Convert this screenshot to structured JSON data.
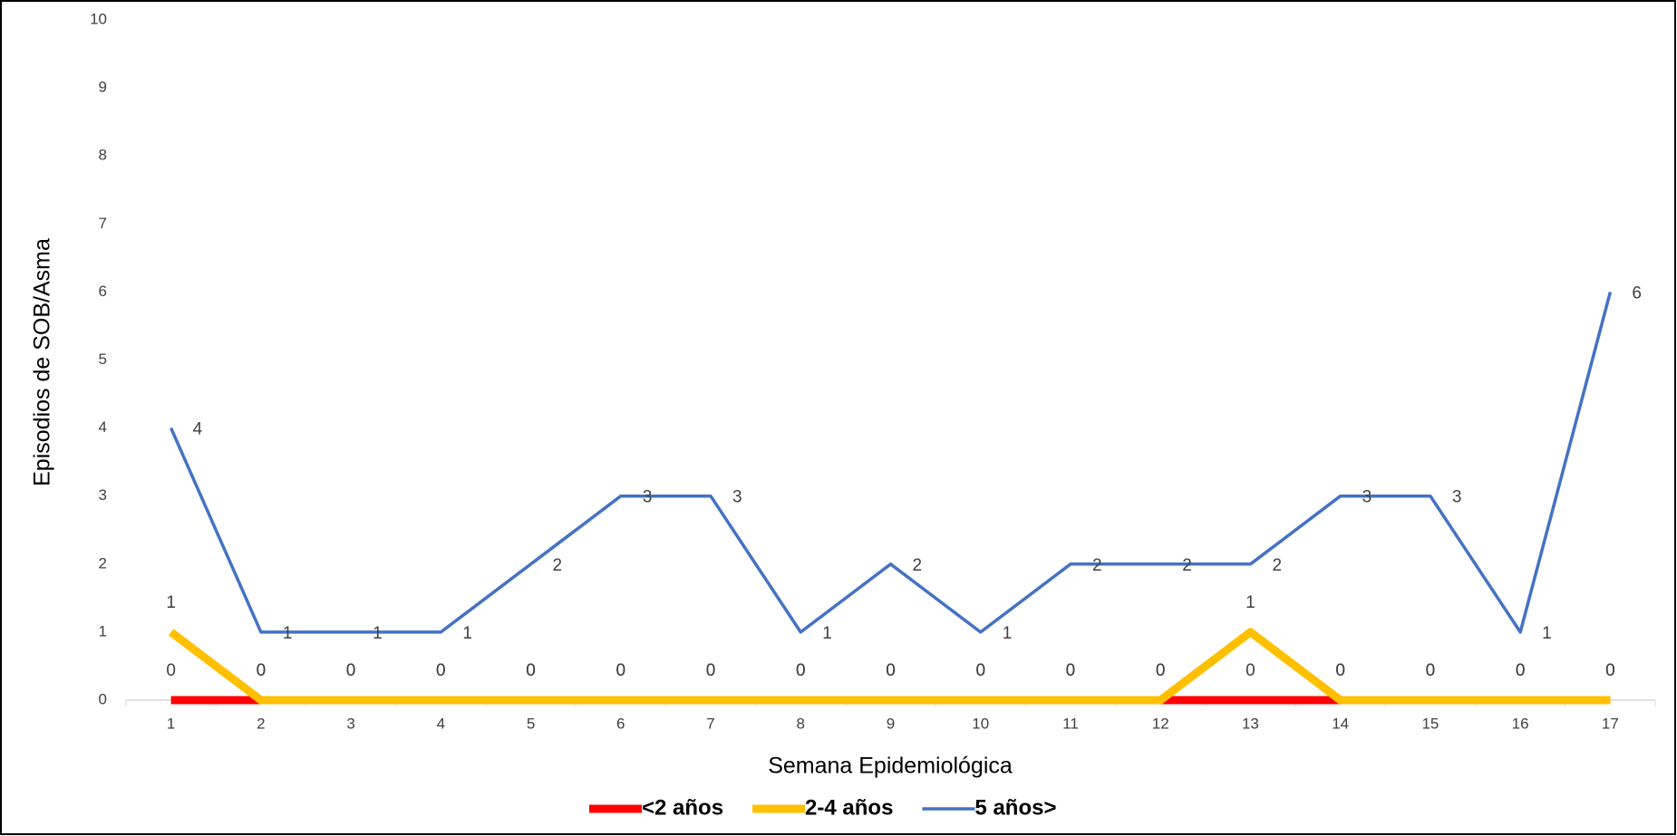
{
  "chart_data": {
    "type": "line",
    "x_label": "Semana Epidemiológica",
    "y_label": "Episodios de SOB/Asma",
    "categories": [
      "1",
      "2",
      "3",
      "4",
      "5",
      "6",
      "7",
      "8",
      "9",
      "10",
      "11",
      "12",
      "13",
      "14",
      "15",
      "16",
      "17"
    ],
    "series": [
      {
        "name": "<2 años",
        "color": "#ff0000",
        "values": [
          0,
          0,
          0,
          0,
          0,
          0,
          0,
          0,
          0,
          0,
          0,
          0,
          0,
          0,
          0,
          0,
          0
        ]
      },
      {
        "name": "2-4 años",
        "color": "#ffc000",
        "values": [
          1,
          0,
          0,
          0,
          0,
          0,
          0,
          0,
          0,
          0,
          0,
          0,
          1,
          0,
          0,
          0,
          0
        ]
      },
      {
        "name": "5 años>",
        "color": "#4472c4",
        "values": [
          4,
          1,
          1,
          1,
          2,
          3,
          3,
          1,
          2,
          1,
          2,
          2,
          2,
          3,
          3,
          1,
          6
        ]
      }
    ],
    "ylim": [
      0,
      10
    ],
    "yticks": [
      0,
      1,
      2,
      3,
      4,
      5,
      6,
      7,
      8,
      9,
      10
    ],
    "grid": false,
    "legend": "bottom"
  }
}
